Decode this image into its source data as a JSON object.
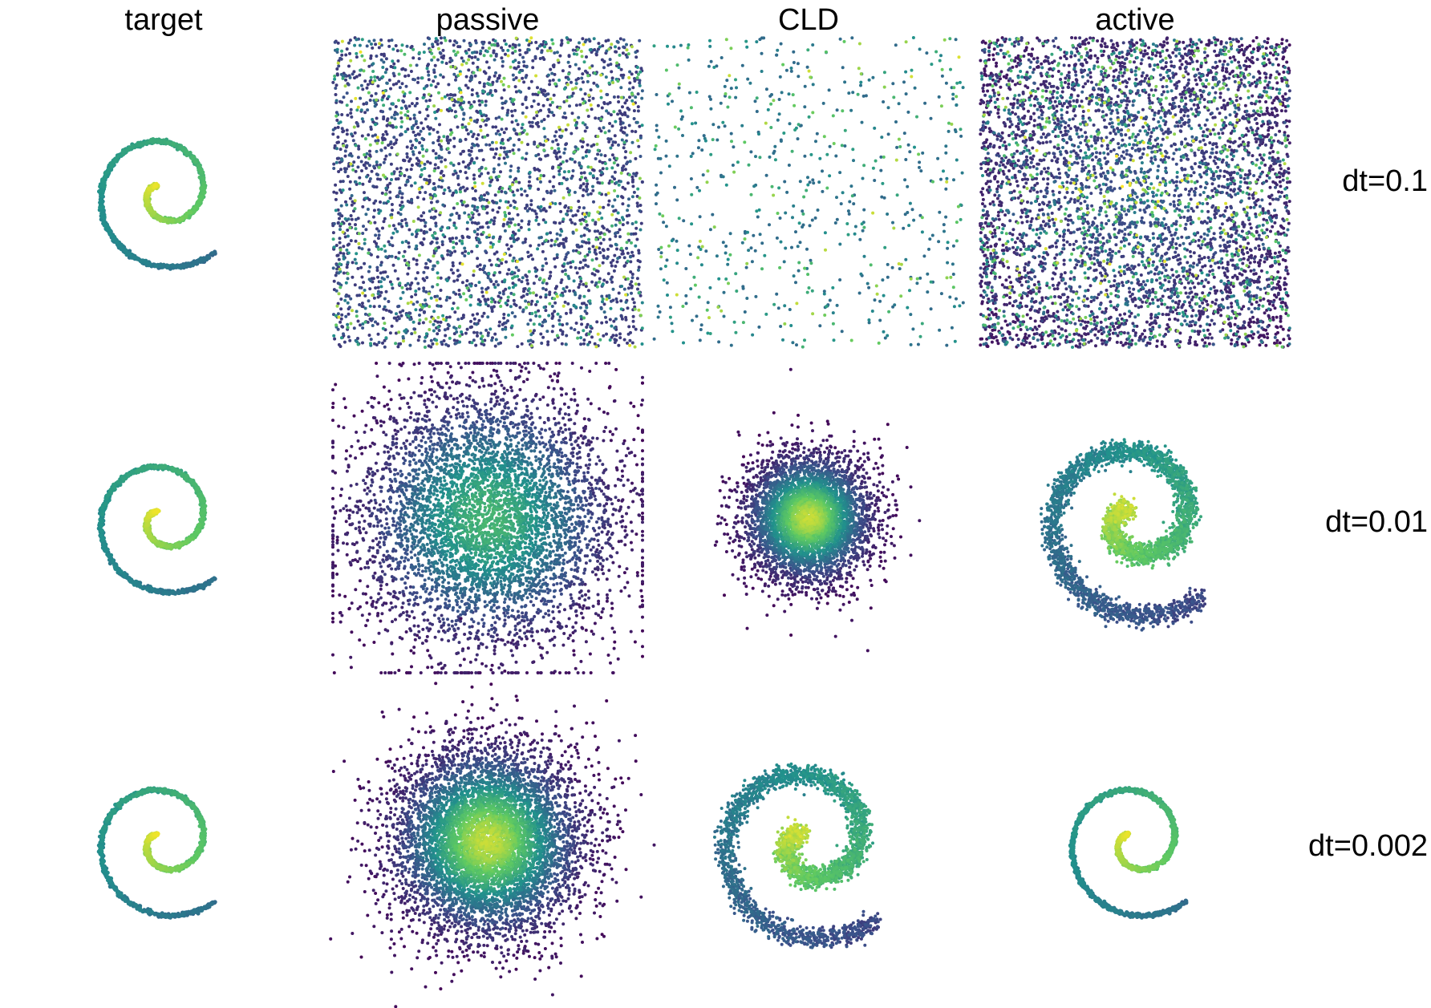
{
  "columns": [
    "target",
    "passive",
    "CLD",
    "active"
  ],
  "rows": [
    "dt=0.1",
    "dt=0.01",
    "dt=0.002"
  ],
  "colormap": [
    "#440154",
    "#3b528b",
    "#21918c",
    "#5ec962",
    "#fde725"
  ],
  "chart_data": {
    "type": "scatter",
    "title": "",
    "encoding": "2D sample scatter per panel, colored by local density (viridis)",
    "panels": [
      {
        "row": "dt=0.1",
        "column": "target",
        "distribution": "spiral",
        "extent": [
          -1,
          1
        ],
        "n": 1400
      },
      {
        "row": "dt=0.1",
        "column": "passive",
        "distribution": "uniform-square",
        "extent": [
          -1,
          1
        ],
        "n": 3400
      },
      {
        "row": "dt=0.1",
        "column": "CLD",
        "distribution": "uniform-square-sparse",
        "extent": [
          -1,
          1
        ],
        "n": 650
      },
      {
        "row": "dt=0.1",
        "column": "active",
        "distribution": "uniform-square-dense",
        "extent": [
          -1,
          1
        ],
        "n": 5200
      },
      {
        "row": "dt=0.01",
        "column": "target",
        "distribution": "spiral",
        "extent": [
          -1,
          1
        ],
        "n": 1400
      },
      {
        "row": "dt=0.01",
        "column": "passive",
        "distribution": "broad-gaussian",
        "extent": [
          -1,
          1
        ],
        "sigma": 0.42,
        "n": 5200
      },
      {
        "row": "dt=0.01",
        "column": "CLD",
        "distribution": "gaussian",
        "extent": [
          -1,
          1
        ],
        "sigma": 0.2,
        "n": 4500
      },
      {
        "row": "dt=0.01",
        "column": "active",
        "distribution": "blurred-spiral",
        "extent": [
          -1,
          1
        ],
        "n": 3200
      },
      {
        "row": "dt=0.002",
        "column": "target",
        "distribution": "spiral",
        "extent": [
          -1,
          1
        ],
        "n": 1400
      },
      {
        "row": "dt=0.002",
        "column": "passive",
        "distribution": "gaussian",
        "extent": [
          -1,
          1
        ],
        "sigma": 0.3,
        "n": 6500
      },
      {
        "row": "dt=0.002",
        "column": "CLD",
        "distribution": "blurred-spiral",
        "extent": [
          -1,
          1
        ],
        "n": 2800
      },
      {
        "row": "dt=0.002",
        "column": "active",
        "distribution": "spiral",
        "extent": [
          -1,
          1
        ],
        "n": 1600
      }
    ]
  }
}
